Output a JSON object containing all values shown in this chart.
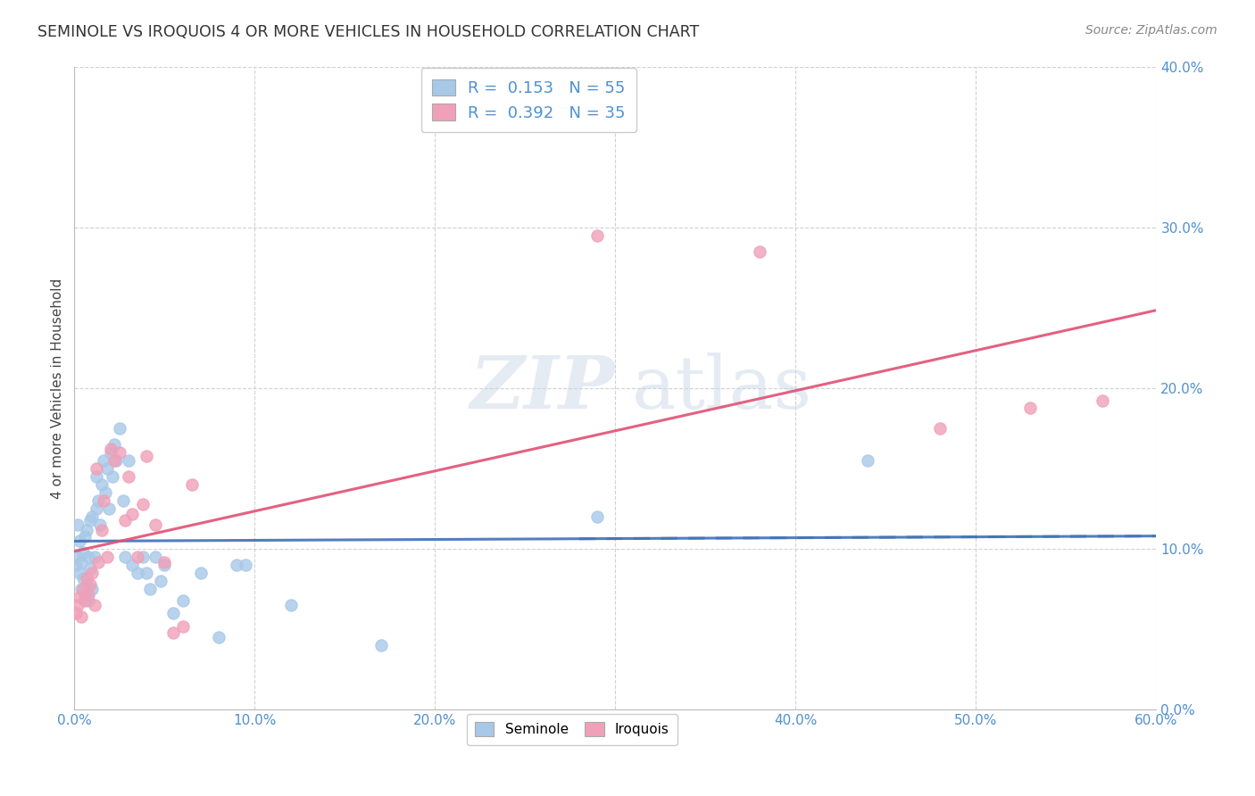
{
  "title": "SEMINOLE VS IROQUOIS 4 OR MORE VEHICLES IN HOUSEHOLD CORRELATION CHART",
  "source": "Source: ZipAtlas.com",
  "ylabel": "4 or more Vehicles in Household",
  "xlim": [
    0.0,
    0.6
  ],
  "ylim": [
    0.0,
    0.4
  ],
  "xticks": [
    0.0,
    0.1,
    0.2,
    0.3,
    0.4,
    0.5,
    0.6
  ],
  "yticks": [
    0.0,
    0.1,
    0.2,
    0.3,
    0.4
  ],
  "seminole_color": "#a8c8e8",
  "iroquois_color": "#f0a0b8",
  "seminole_line_color": "#4070b8",
  "iroquois_line_color": "#e05075",
  "watermark_zip": "ZIP",
  "watermark_atlas": "atlas",
  "background_color": "#ffffff",
  "grid_color": "#cccccc",
  "tick_color": "#5090d0",
  "legend_r_color": "#5090d0",
  "legend_n_color": "#5090d0",
  "seminole_x": [
    0.001,
    0.002,
    0.002,
    0.003,
    0.003,
    0.004,
    0.004,
    0.005,
    0.005,
    0.006,
    0.006,
    0.007,
    0.007,
    0.008,
    0.008,
    0.009,
    0.009,
    0.01,
    0.01,
    0.011,
    0.012,
    0.012,
    0.013,
    0.014,
    0.015,
    0.016,
    0.017,
    0.018,
    0.019,
    0.02,
    0.021,
    0.022,
    0.023,
    0.025,
    0.027,
    0.028,
    0.03,
    0.032,
    0.035,
    0.038,
    0.04,
    0.042,
    0.045,
    0.048,
    0.05,
    0.055,
    0.06,
    0.07,
    0.08,
    0.09,
    0.095,
    0.12,
    0.17,
    0.29,
    0.44
  ],
  "seminole_y": [
    0.09,
    0.115,
    0.095,
    0.105,
    0.085,
    0.092,
    0.075,
    0.098,
    0.082,
    0.108,
    0.072,
    0.112,
    0.078,
    0.095,
    0.068,
    0.118,
    0.088,
    0.12,
    0.075,
    0.095,
    0.125,
    0.145,
    0.13,
    0.115,
    0.14,
    0.155,
    0.135,
    0.15,
    0.125,
    0.16,
    0.145,
    0.165,
    0.155,
    0.175,
    0.13,
    0.095,
    0.155,
    0.09,
    0.085,
    0.095,
    0.085,
    0.075,
    0.095,
    0.08,
    0.09,
    0.06,
    0.068,
    0.085,
    0.045,
    0.09,
    0.09,
    0.065,
    0.04,
    0.12,
    0.155
  ],
  "iroquois_x": [
    0.001,
    0.002,
    0.003,
    0.004,
    0.005,
    0.006,
    0.007,
    0.008,
    0.009,
    0.01,
    0.011,
    0.012,
    0.013,
    0.015,
    0.016,
    0.018,
    0.02,
    0.022,
    0.025,
    0.028,
    0.03,
    0.032,
    0.035,
    0.038,
    0.04,
    0.045,
    0.05,
    0.055,
    0.06,
    0.065,
    0.29,
    0.38,
    0.48,
    0.53,
    0.57
  ],
  "iroquois_y": [
    0.06,
    0.065,
    0.07,
    0.058,
    0.075,
    0.068,
    0.082,
    0.072,
    0.078,
    0.085,
    0.065,
    0.15,
    0.092,
    0.112,
    0.13,
    0.095,
    0.162,
    0.155,
    0.16,
    0.118,
    0.145,
    0.122,
    0.095,
    0.128,
    0.158,
    0.115,
    0.092,
    0.048,
    0.052,
    0.14,
    0.295,
    0.285,
    0.175,
    0.188,
    0.192
  ]
}
